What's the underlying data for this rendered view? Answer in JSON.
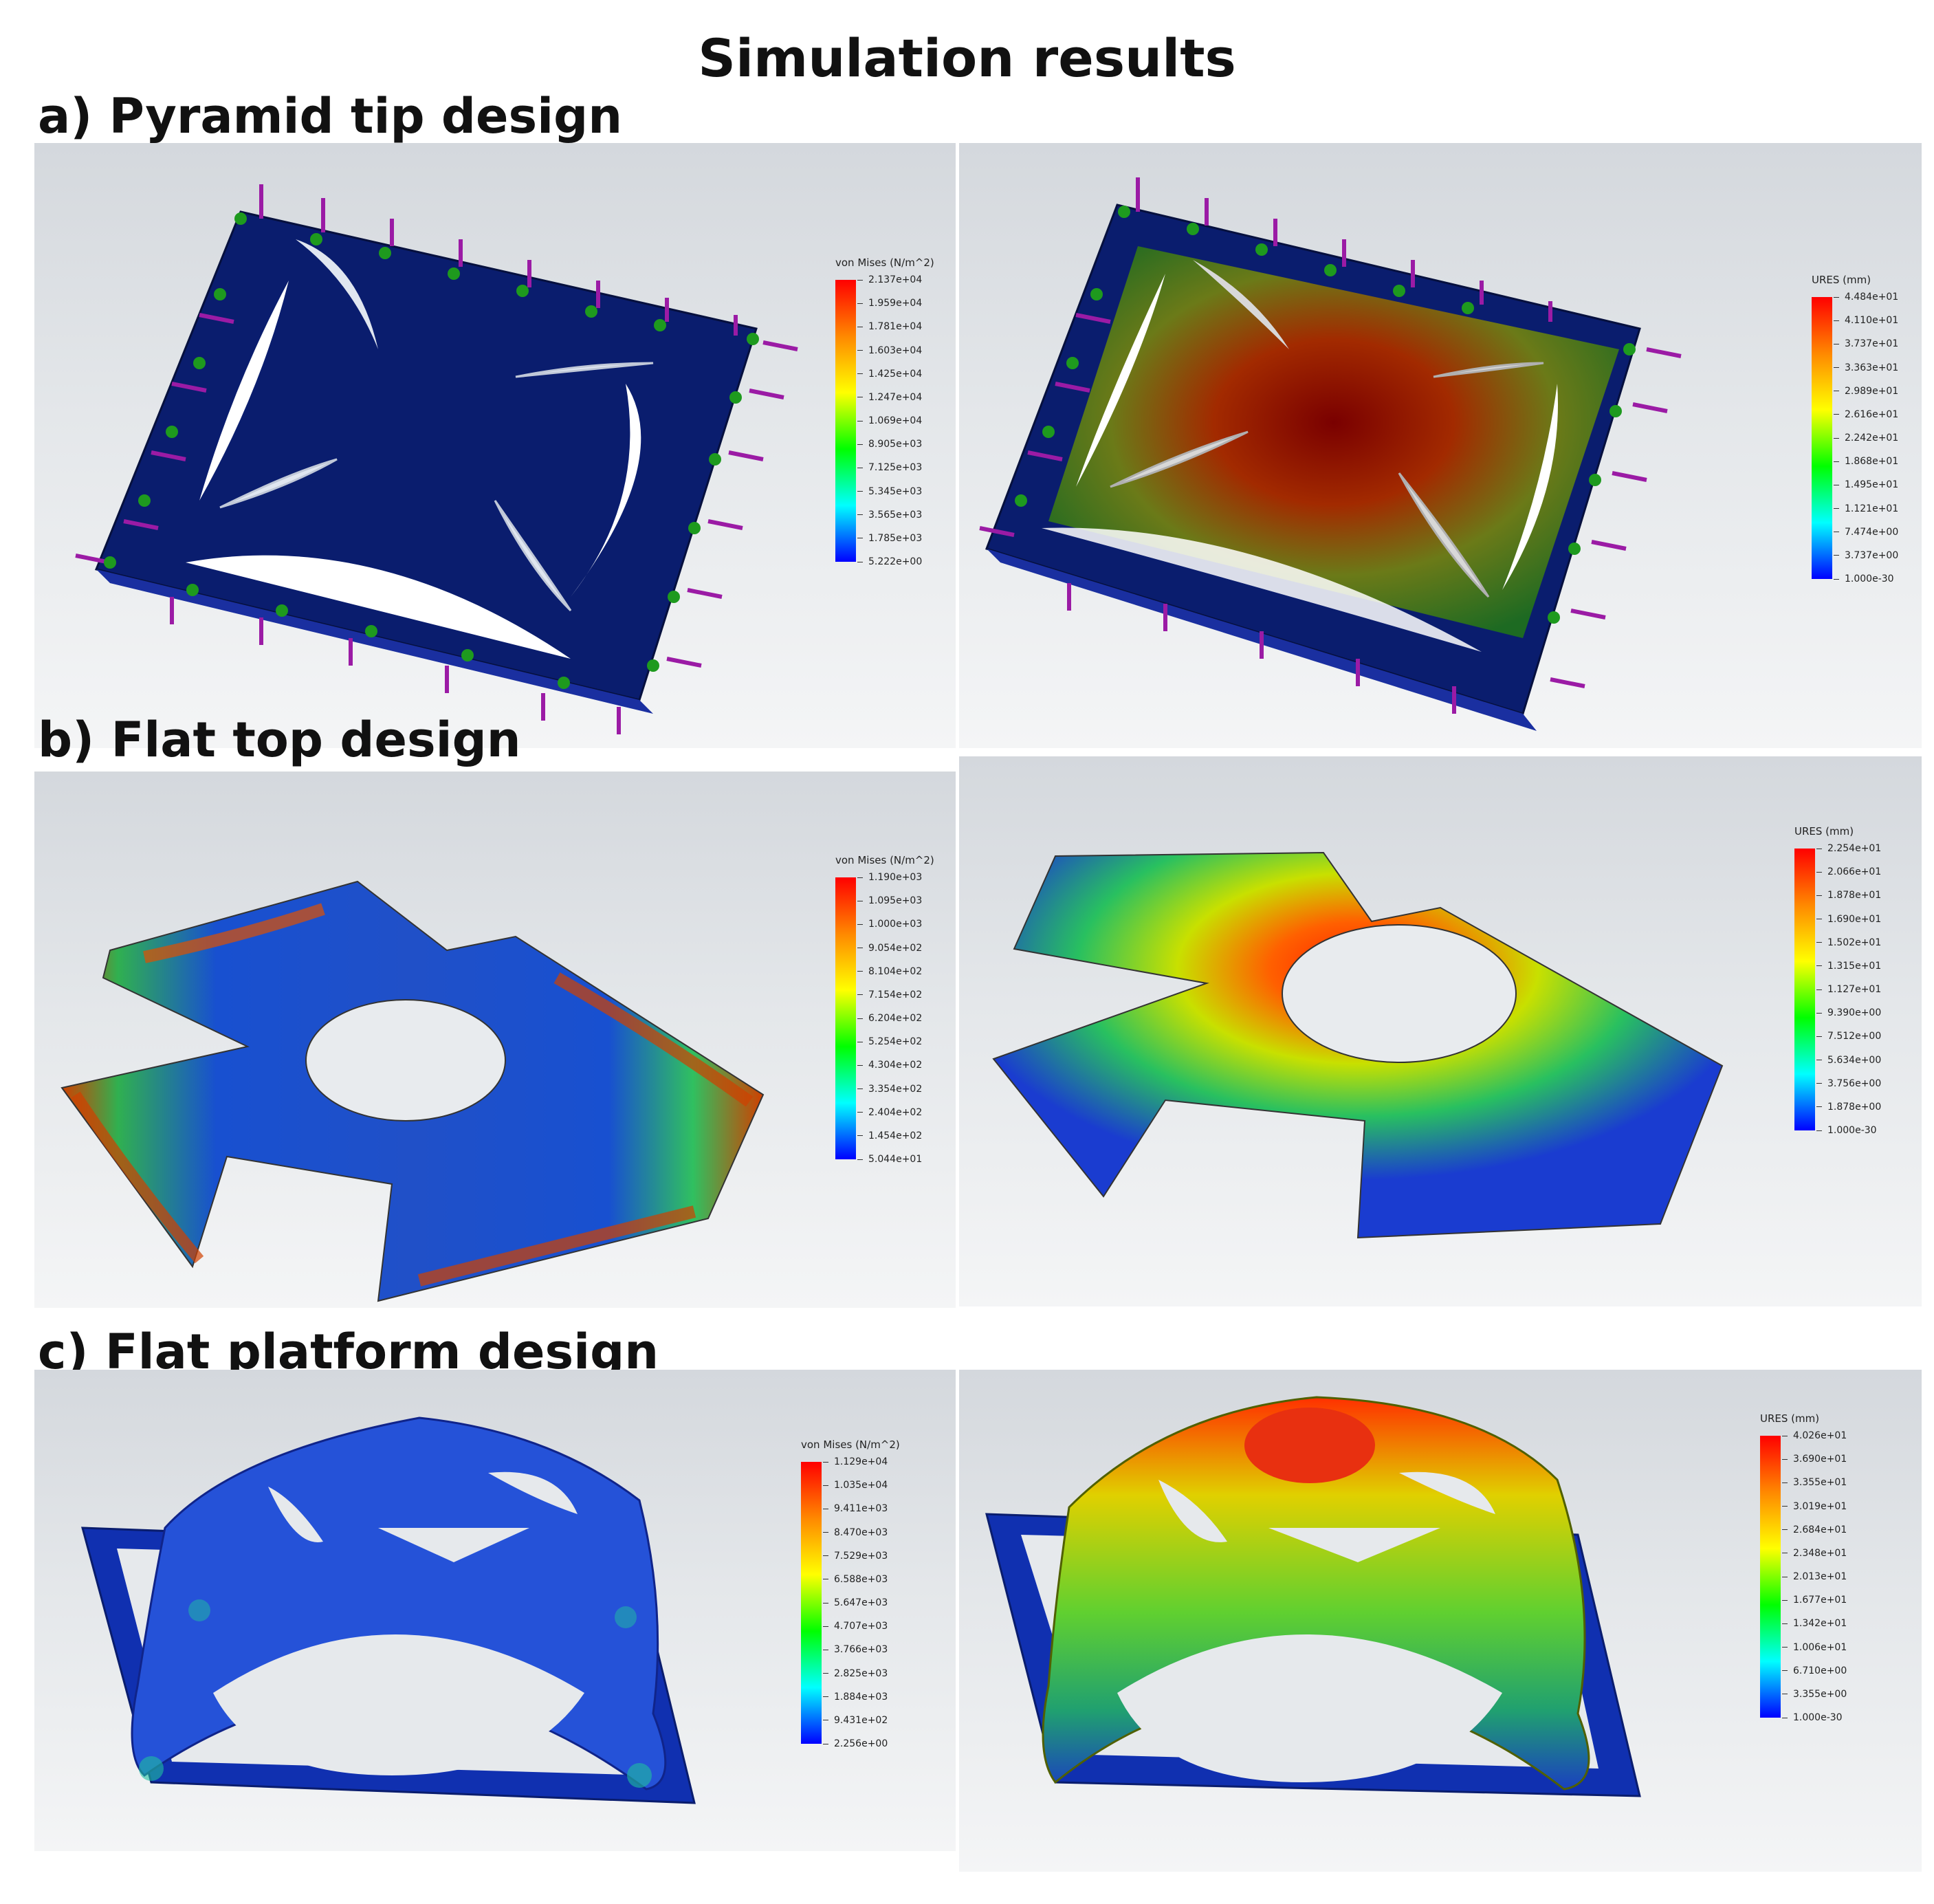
{
  "title": "Simulation results",
  "sections": [
    {
      "label": "a) Pyramid tip design",
      "stress_legend": {
        "title": "von Mises (N/m^2)",
        "ticks": [
          "2.137e+04",
          "1.959e+04",
          "1.781e+04",
          "1.603e+04",
          "1.425e+04",
          "1.247e+04",
          "1.069e+04",
          "8.905e+03",
          "7.125e+03",
          "5.345e+03",
          "3.565e+03",
          "1.785e+03",
          "5.222e+00"
        ]
      },
      "displacement_legend": {
        "title": "URES (mm)",
        "ticks": [
          "4.484e+01",
          "4.110e+01",
          "3.737e+01",
          "3.363e+01",
          "2.989e+01",
          "2.616e+01",
          "2.242e+01",
          "1.868e+01",
          "1.495e+01",
          "1.121e+01",
          "7.474e+00",
          "3.737e+00",
          "1.000e-30"
        ]
      }
    },
    {
      "label": "b) Flat top design",
      "stress_legend": {
        "title": "von Mises (N/m^2)",
        "ticks": [
          "1.190e+03",
          "1.095e+03",
          "1.000e+03",
          "9.054e+02",
          "8.104e+02",
          "7.154e+02",
          "6.204e+02",
          "5.254e+02",
          "4.304e+02",
          "3.354e+02",
          "2.404e+02",
          "1.454e+02",
          "5.044e+01"
        ]
      },
      "displacement_legend": {
        "title": "URES (mm)",
        "ticks": [
          "2.254e+01",
          "2.066e+01",
          "1.878e+01",
          "1.690e+01",
          "1.502e+01",
          "1.315e+01",
          "1.127e+01",
          "9.390e+00",
          "7.512e+00",
          "5.634e+00",
          "3.756e+00",
          "1.878e+00",
          "1.000e-30"
        ]
      }
    },
    {
      "label": "c) Flat platform design",
      "stress_legend": {
        "title": "von Mises (N/m^2)",
        "ticks": [
          "1.129e+04",
          "1.035e+04",
          "9.411e+03",
          "8.470e+03",
          "7.529e+03",
          "6.588e+03",
          "5.647e+03",
          "4.707e+03",
          "3.766e+03",
          "2.825e+03",
          "1.884e+03",
          "9.431e+02",
          "2.256e+00"
        ]
      },
      "displacement_legend": {
        "title": "URES (mm)",
        "ticks": [
          "4.026e+01",
          "3.690e+01",
          "3.355e+01",
          "3.019e+01",
          "2.684e+01",
          "2.348e+01",
          "2.013e+01",
          "1.677e+01",
          "1.342e+01",
          "1.006e+01",
          "6.710e+00",
          "3.355e+00",
          "1.000e-30"
        ]
      }
    }
  ],
  "colors": {
    "colormap": [
      "#ff0000",
      "#ff8000",
      "#ffff00",
      "#00ff00",
      "#00ffff",
      "#0000ff"
    ],
    "load_arrows": "#9b1ba5",
    "fixtures": "#1e9a1e",
    "model_dark": "#0a1d6e"
  }
}
